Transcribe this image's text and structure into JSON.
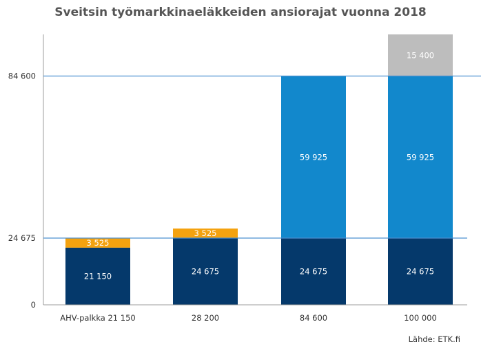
{
  "chart_data": {
    "type": "bar",
    "stacked": true,
    "title": "Sveitsin työmarkkinaeläkkeiden ansiorajat vuonna 2018",
    "categories": [
      "AHV-palkka 21 150",
      "28 200",
      "84 600",
      "100 000"
    ],
    "series": [
      {
        "color": "#05396b",
        "values": [
          21150,
          24675,
          24675,
          24675
        ],
        "labels": [
          "21 150",
          "24 675",
          "24 675",
          "24 675"
        ]
      },
      {
        "color": "#f4a20f",
        "values": [
          3525,
          3525,
          0,
          0
        ],
        "labels": [
          "3 525",
          "3 525",
          "",
          ""
        ]
      },
      {
        "color": "#1288cc",
        "values": [
          0,
          0,
          59925,
          59925
        ],
        "labels": [
          "",
          "",
          "59 925",
          "59 925"
        ]
      },
      {
        "color": "#bdbdbd",
        "values": [
          0,
          0,
          0,
          15400
        ],
        "labels": [
          "",
          "",
          "",
          "15 400"
        ]
      }
    ],
    "yticks": [
      0,
      24675,
      84600
    ],
    "ytick_labels": [
      "0",
      "24 675",
      "84 600"
    ],
    "reference_lines": [
      24675,
      84600
    ],
    "ylim": [
      0,
      100000
    ],
    "grid": false,
    "source": "Lähde: ETK.fi"
  }
}
